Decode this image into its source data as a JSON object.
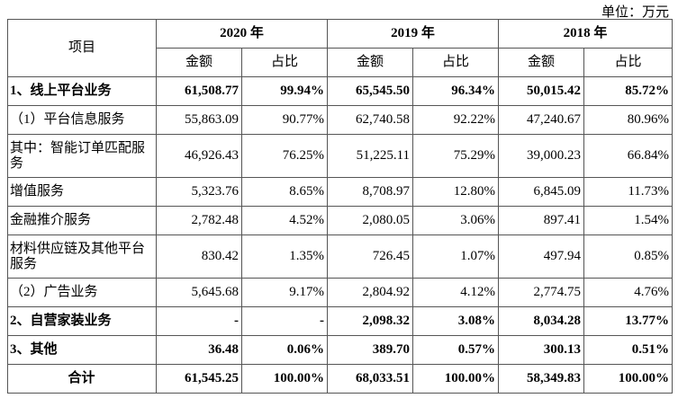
{
  "unit_label": "单位：万元",
  "table": {
    "item_header": "项目",
    "years": [
      "2020 年",
      "2019 年",
      "2018 年"
    ],
    "sub_headers": [
      "金额",
      "占比"
    ],
    "rows": [
      {
        "label": "1、线上平台业务",
        "bold": true,
        "values": [
          "61,508.77",
          "99.94%",
          "65,545.50",
          "96.34%",
          "50,015.42",
          "85.72%"
        ]
      },
      {
        "label": "（1）平台信息服务",
        "bold": false,
        "values": [
          "55,863.09",
          "90.77%",
          "62,740.58",
          "92.22%",
          "47,240.67",
          "80.96%"
        ]
      },
      {
        "label": "其中：智能订单匹配服务",
        "bold": false,
        "tall": true,
        "values": [
          "46,926.43",
          "76.25%",
          "51,225.11",
          "75.29%",
          "39,000.23",
          "66.84%"
        ]
      },
      {
        "label": "增值服务",
        "bold": false,
        "values": [
          "5,323.76",
          "8.65%",
          "8,708.97",
          "12.80%",
          "6,845.09",
          "11.73%"
        ]
      },
      {
        "label": "金融推介服务",
        "bold": false,
        "values": [
          "2,782.48",
          "4.52%",
          "2,080.05",
          "3.06%",
          "897.41",
          "1.54%"
        ]
      },
      {
        "label": "材料供应链及其他平台服务",
        "bold": false,
        "tall": true,
        "values": [
          "830.42",
          "1.35%",
          "726.45",
          "1.07%",
          "497.94",
          "0.85%"
        ]
      },
      {
        "label": "（2）广告业务",
        "bold": false,
        "values": [
          "5,645.68",
          "9.17%",
          "2,804.92",
          "4.12%",
          "2,774.75",
          "4.76%"
        ]
      },
      {
        "label": "2、自营家装业务",
        "bold": true,
        "values": [
          "-",
          "-",
          "2,098.32",
          "3.08%",
          "8,034.28",
          "13.77%"
        ]
      },
      {
        "label": "3、其他",
        "bold": true,
        "values": [
          "36.48",
          "0.06%",
          "389.70",
          "0.57%",
          "300.13",
          "0.51%"
        ]
      },
      {
        "label": "合计",
        "bold": true,
        "total": true,
        "values": [
          "61,545.25",
          "100.00%",
          "68,033.51",
          "100.00%",
          "58,349.83",
          "100.00%"
        ]
      }
    ]
  }
}
